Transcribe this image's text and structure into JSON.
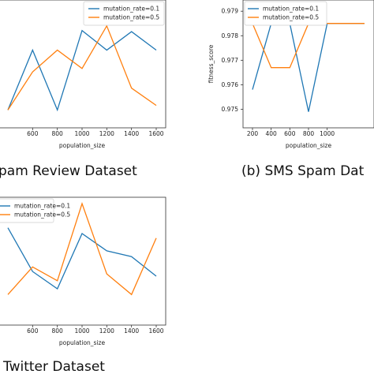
{
  "chart_data": [
    {
      "type": "line",
      "x": [
        400,
        600,
        800,
        1000,
        1200,
        1400,
        1600
      ],
      "xticks": [
        "600",
        "800",
        "1000",
        "1200",
        "1400",
        "1600"
      ],
      "x_partial_tick": "0",
      "xlabel": "population_size",
      "ylim": [
        0,
        10
      ],
      "series": [
        {
          "name": "mutation_rate=0.1",
          "color": "#1f77b4",
          "values": [
            1.0,
            6.2,
            1.0,
            7.9,
            6.2,
            7.8,
            6.2
          ]
        },
        {
          "name": "mutation_rate=0.5",
          "color": "#ff7f0e",
          "values": [
            1.0,
            4.3,
            6.2,
            4.6,
            8.3,
            2.9,
            1.4
          ]
        }
      ],
      "legend": "top-right",
      "caption": "pam Review Dataset"
    },
    {
      "type": "line",
      "x": [
        200,
        400,
        600,
        800,
        1000,
        1200,
        1400
      ],
      "xticks": [
        "200",
        "400",
        "600",
        "800",
        "1000"
      ],
      "x_partial_tick": "1",
      "xlabel": "population_size",
      "ylabel": "fitness_score",
      "ylim": [
        0.9745,
        0.9792
      ],
      "yticks": [
        "0.975",
        "0.976",
        "0.977",
        "0.978",
        "0.979"
      ],
      "series": [
        {
          "name": "mutation_rate=0.1",
          "color": "#1f77b4",
          "values": [
            0.9758,
            0.9785,
            0.9785,
            0.9749,
            0.9785,
            0.9785,
            0.9785
          ]
        },
        {
          "name": "mutation_rate=0.5",
          "color": "#ff7f0e",
          "values": [
            0.9785,
            0.9767,
            0.9767,
            0.9785,
            0.9785,
            0.9785,
            0.9785
          ]
        }
      ],
      "legend": "top-right",
      "caption": "(b) SMS Spam Dat"
    },
    {
      "type": "line",
      "x": [
        400,
        600,
        800,
        1000,
        1200,
        1400,
        1600
      ],
      "xticks": [
        "600",
        "800",
        "1000",
        "1200",
        "1400",
        "1600"
      ],
      "x_partial_tick": "0",
      "xlabel": "population_size",
      "ylim": [
        0,
        10
      ],
      "series": [
        {
          "name": "mutation_rate=0.1",
          "color": "#1f77b4",
          "values": [
            7.9,
            4.1,
            2.6,
            7.4,
            5.9,
            5.4,
            3.7
          ]
        },
        {
          "name": "mutation_rate=0.5",
          "color": "#ff7f0e",
          "values": [
            2.1,
            4.5,
            3.3,
            10.0,
            3.9,
            2.1,
            7.0
          ]
        }
      ],
      "legend": "top-left",
      "caption": "Twitter Dataset"
    }
  ]
}
